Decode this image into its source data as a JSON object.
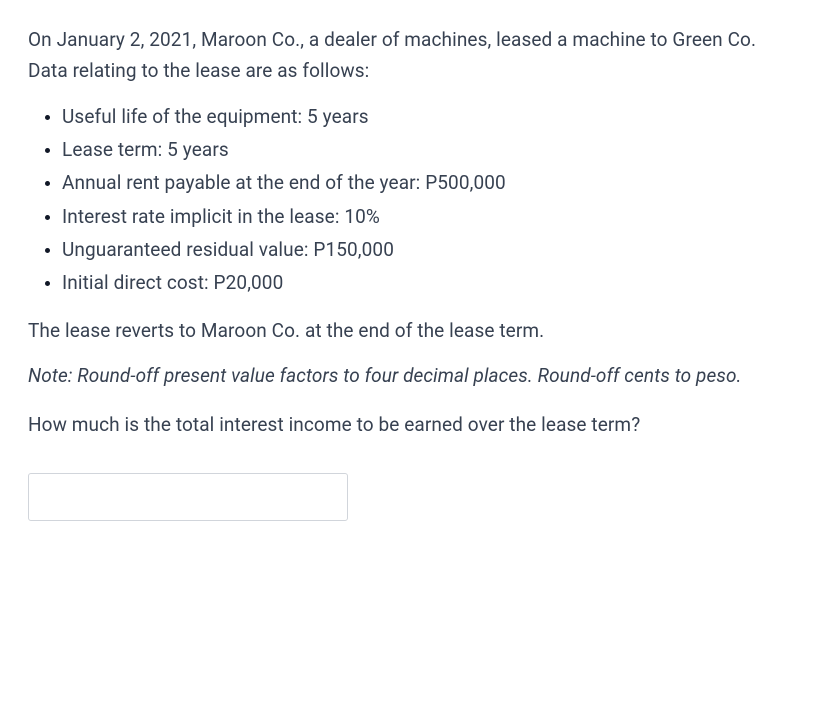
{
  "intro": "On January 2, 2021, Maroon Co., a dealer of machines, leased a machine to Green Co. Data relating to the lease are as follows:",
  "bullets": [
    "Useful life of the equipment: 5 years",
    "Lease term: 5 years",
    "Annual rent payable at the end of the year: P500,000",
    "Interest rate implicit in the lease: 10%",
    "Unguaranteed residual value: P150,000",
    "Initial direct cost: P20,000"
  ],
  "revert": "The lease reverts to Maroon Co. at the end of the lease term.",
  "note": "Note: Round-off present value factors to four decimal places. Round-off cents to peso.",
  "question": "How much is the total interest income to be earned over the lease term?",
  "answer_value": ""
}
